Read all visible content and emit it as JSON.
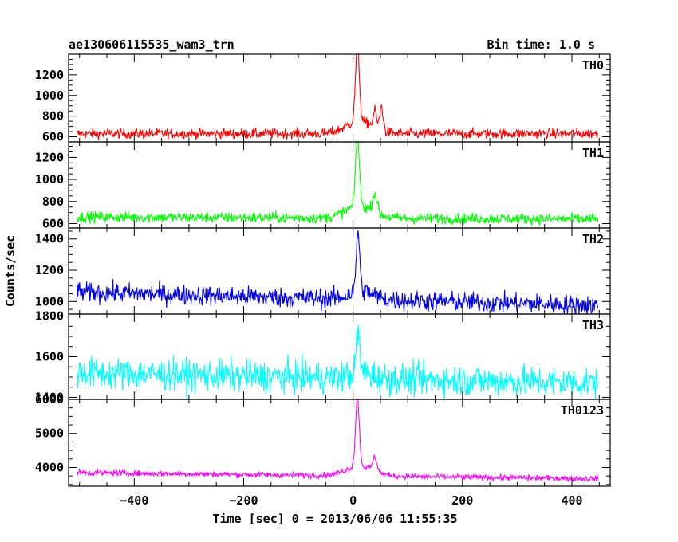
{
  "chart_data": {
    "type": "line",
    "title": "ae130606115535_wam3_trn",
    "subtitle": "Bin time: 1.0 s",
    "xlabel": "Time [sec] 0 = 2013/06/06 11:55:35",
    "ylabel": "Counts/sec",
    "xlim": [
      -520,
      470
    ],
    "x_ticks": [
      -400,
      -200,
      0,
      200,
      400
    ],
    "x_range": [
      -505,
      448
    ],
    "shared_x": true,
    "panels": [
      {
        "name": "TH0",
        "color": "#ff0000",
        "ylim": [
          550,
          1400
        ],
        "y_ticks": [
          600,
          800,
          1000,
          1200
        ],
        "baseline": 630,
        "noise": 35,
        "drift": 0,
        "peaks": [
          {
            "x": 8,
            "amp": 750,
            "w": 3.5
          },
          {
            "x": 40,
            "amp": 160,
            "w": 3
          },
          {
            "x": 52,
            "amp": 230,
            "w": 3
          },
          {
            "x": 12,
            "amp": 120,
            "w": 25
          }
        ]
      },
      {
        "name": "TH1",
        "color": "#00ff00",
        "ylim": [
          560,
          1340
        ],
        "y_ticks": [
          600,
          800,
          1000,
          1200
        ],
        "baseline": 660,
        "noise": 35,
        "drift": -20,
        "peaks": [
          {
            "x": 8,
            "amp": 640,
            "w": 3.5
          },
          {
            "x": 40,
            "amp": 170,
            "w": 4
          },
          {
            "x": 12,
            "amp": 110,
            "w": 25
          }
        ]
      },
      {
        "name": "TH2",
        "color": "#0000ee",
        "ylim": [
          920,
          1470
        ],
        "y_ticks": [
          1000,
          1200,
          1400
        ],
        "baseline": 1060,
        "noise": 45,
        "drift": -85,
        "peaks": [
          {
            "x": 9,
            "amp": 380,
            "w": 3
          },
          {
            "x": 15,
            "amp": 60,
            "w": 20
          }
        ]
      },
      {
        "name": "TH3",
        "color": "#00ffff",
        "ylim": [
          1390,
          1810
        ],
        "y_ticks": [
          1400,
          1600,
          1800
        ],
        "baseline": 1520,
        "noise": 55,
        "drift": -50,
        "peaks": [
          {
            "x": 9,
            "amp": 210,
            "w": 3
          },
          {
            "x": 15,
            "amp": 30,
            "w": 20
          }
        ]
      },
      {
        "name": "TH0123",
        "color": "#ff00ff",
        "ylim": [
          3450,
          6000
        ],
        "y_ticks": [
          4000,
          5000,
          6000
        ],
        "baseline": 3850,
        "noise": 60,
        "drift": -180,
        "peaks": [
          {
            "x": 8,
            "amp": 2000,
            "w": 3.5
          },
          {
            "x": 40,
            "amp": 400,
            "w": 4
          },
          {
            "x": 12,
            "amp": 280,
            "w": 25
          }
        ]
      }
    ]
  }
}
